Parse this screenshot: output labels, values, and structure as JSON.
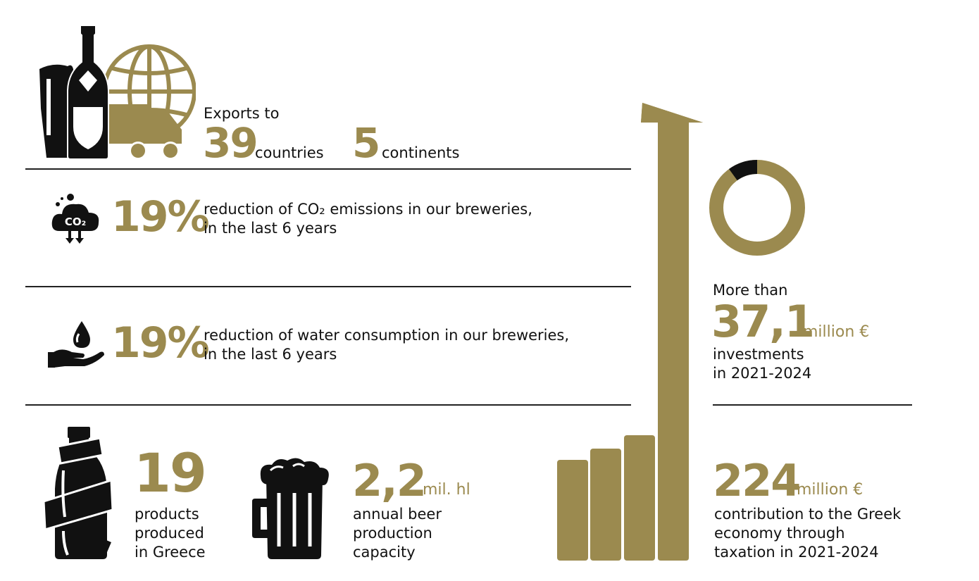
{
  "colors": {
    "gold": "#9b8a4f",
    "black": "#111111"
  },
  "icons": {
    "exports": "beer-bottle-glass-globe-truck-icon",
    "co2": "co2-cloud-icon",
    "water": "water-drop-hand-icon",
    "bottle": "bottle-ribbon-icon",
    "mug": "beer-mug-icon",
    "growth": "growth-bars-arrow-icon",
    "donut": "donut-chart-icon"
  },
  "exports": {
    "label": "Exports to",
    "countries_value": "39",
    "countries_label": "countries",
    "continents_value": "5",
    "continents_label": "continents"
  },
  "co2": {
    "value": "19%",
    "line1": "reduction of CO₂ emissions in our breweries,",
    "line2": "in the last 6 years",
    "icon_text": "CO₂"
  },
  "water": {
    "value": "19%",
    "line1": "reduction of water consumption in our breweries,",
    "line2": "in the last 6 years"
  },
  "products": {
    "value": "19",
    "line1": "products",
    "line2": "produced",
    "line3": "in Greece"
  },
  "capacity": {
    "value": "2,2",
    "unit": "mil. hl",
    "line1": "annual beer",
    "line2": "production",
    "line3": "capacity"
  },
  "investments": {
    "prefix": "More than",
    "value": "37,1",
    "unit": "million €",
    "line1": "investments",
    "line2": "in 2021-2024",
    "donut_fraction": 0.9
  },
  "taxation": {
    "value": "224",
    "unit": "million €",
    "line1": "contribution to the Greek",
    "line2": "economy through",
    "line3": "taxation in 2021-2024"
  }
}
